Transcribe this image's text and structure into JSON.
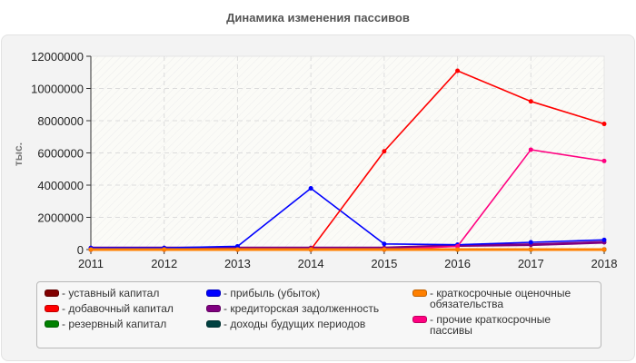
{
  "chart_data": {
    "type": "line",
    "title": "Динамика изменения пассивов",
    "xlabel": "",
    "ylabel": "тыс.",
    "x": [
      "2011",
      "2012",
      "2013",
      "2014",
      "2015",
      "2016",
      "2017",
      "2018"
    ],
    "ylim": [
      0,
      12000000
    ],
    "yticks": [
      0,
      2000000,
      4000000,
      6000000,
      8000000,
      10000000,
      12000000
    ],
    "ytick_labels": [
      "0",
      "2000000",
      "4000000",
      "6000000",
      "8000000",
      "10000000",
      "12000000"
    ],
    "grid": true,
    "legend_position": "bottom",
    "series": [
      {
        "name": "уставный капитал",
        "color": "#800000",
        "values": [
          10000,
          10000,
          10000,
          10000,
          10000,
          10000,
          10000,
          10000
        ]
      },
      {
        "name": "добавочный капитал",
        "color": "#ff0000",
        "values": [
          0,
          0,
          0,
          0,
          6100000,
          11100000,
          9200000,
          7800000
        ]
      },
      {
        "name": "резервный капитал",
        "color": "#008000",
        "values": [
          0,
          0,
          0,
          0,
          0,
          0,
          0,
          0
        ]
      },
      {
        "name": "прибыль (убыток)",
        "color": "#0000ff",
        "values": [
          100000,
          100000,
          200000,
          3800000,
          350000,
          300000,
          450000,
          600000
        ]
      },
      {
        "name": "кредиторская задолженность",
        "color": "#800080",
        "values": [
          100000,
          100000,
          100000,
          100000,
          100000,
          250000,
          300000,
          450000
        ]
      },
      {
        "name": "доходы будущих периодов",
        "color": "#004040",
        "values": [
          0,
          0,
          0,
          0,
          0,
          0,
          0,
          0
        ]
      },
      {
        "name": "краткосрочные оценочные обязательства",
        "color": "#ff8000",
        "values": [
          0,
          0,
          0,
          0,
          0,
          0,
          0,
          0
        ]
      },
      {
        "name": "прочие краткосрочные пассивы",
        "color": "#ff0080",
        "values": [
          0,
          0,
          0,
          0,
          0,
          200000,
          6200000,
          5500000
        ]
      }
    ]
  },
  "legend": {
    "columns": [
      [
        {
          "label": "- уставный капитал",
          "color": "#800000"
        },
        {
          "label": "- добавочный капитал",
          "color": "#ff0000"
        },
        {
          "label": "- резервный капитал",
          "color": "#008000"
        }
      ],
      [
        {
          "label": "- прибыль (убыток)",
          "color": "#0000ff"
        },
        {
          "label": "- кредиторская задолженность",
          "color": "#800080"
        },
        {
          "label": "- доходы будущих периодов",
          "color": "#004040"
        }
      ],
      [
        {
          "label": "- краткосрочные оценочные\nобязательства",
          "color": "#ff8000"
        },
        {
          "label": "- прочие краткосрочные\nпассивы",
          "color": "#ff0080"
        }
      ]
    ]
  }
}
